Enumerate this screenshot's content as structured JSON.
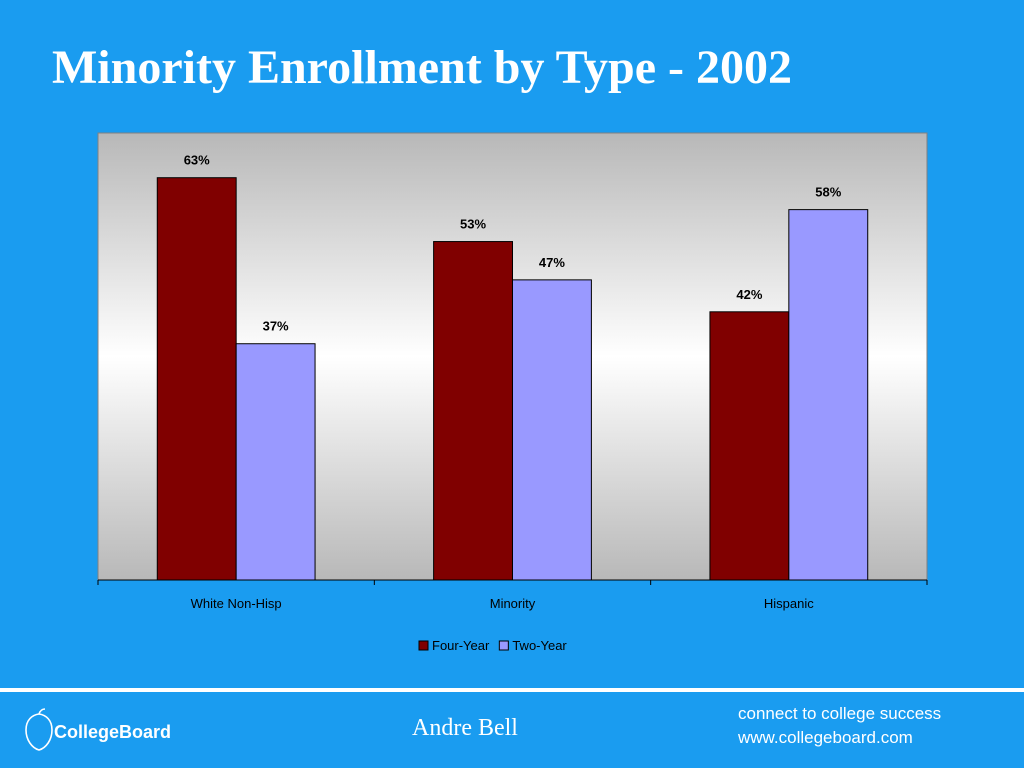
{
  "slide": {
    "title": "Minority Enrollment by Type - 2002",
    "presenter": "Andre Bell",
    "tagline": "connect to college success",
    "website": "www.collegeboard.com",
    "logo_text": "CollegeBoard"
  },
  "colors": {
    "background": "#1a9cf0",
    "four_year": "#800000",
    "two_year": "#9999ff"
  },
  "chart_data": {
    "type": "bar",
    "title": "",
    "xlabel": "",
    "ylabel": "",
    "categories": [
      "White Non-Hisp",
      "Minority",
      "Hispanic"
    ],
    "series": [
      {
        "name": "Four-Year",
        "values": [
          63,
          53,
          42
        ],
        "labels": [
          "63%",
          "53%",
          "42%"
        ]
      },
      {
        "name": "Two-Year",
        "values": [
          37,
          47,
          58
        ],
        "labels": [
          "37%",
          "47%",
          "58%"
        ]
      }
    ],
    "ylim": [
      0,
      70
    ],
    "grid": false,
    "legend": "bottom"
  }
}
